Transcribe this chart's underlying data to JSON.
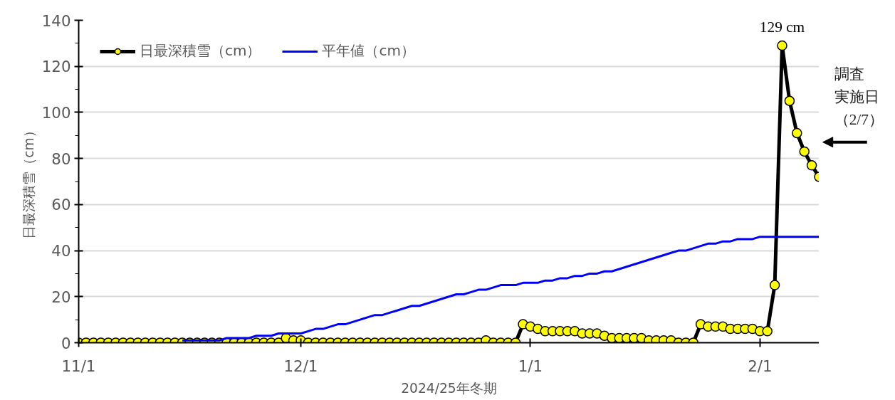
{
  "chart_data": {
    "type": "line",
    "xlabel": "2024/25年冬期",
    "ylabel": "日最深積雪（cm）",
    "xlim": [
      "2024-11-01",
      "2025-02-09"
    ],
    "xticks": [
      {
        "value": "2024-11-01",
        "label": "11/1"
      },
      {
        "value": "2024-12-01",
        "label": "12/1"
      },
      {
        "value": "2025-01-01",
        "label": "1/1"
      },
      {
        "value": "2025-02-01",
        "label": "2/1"
      }
    ],
    "ylim": [
      0,
      140
    ],
    "yticks": [
      0,
      {
        "value": 10,
        "label": null
      },
      20,
      {
        "value": 30,
        "label": null
      },
      40,
      {
        "value": 50,
        "label": null
      },
      60,
      {
        "value": 70,
        "label": null
      },
      80,
      {
        "value": 90,
        "label": null
      },
      100,
      {
        "value": 110,
        "label": null
      },
      120,
      {
        "value": 130,
        "label": null
      },
      140
    ],
    "grid": "y",
    "legend": "top left",
    "marker": "circle",
    "x": [
      "2024-11-01",
      "2024-11-02",
      "2024-11-03",
      "2024-11-04",
      "2024-11-05",
      "2024-11-06",
      "2024-11-07",
      "2024-11-08",
      "2024-11-09",
      "2024-11-10",
      "2024-11-11",
      "2024-11-12",
      "2024-11-13",
      "2024-11-14",
      "2024-11-15",
      "2024-11-16",
      "2024-11-17",
      "2024-11-18",
      "2024-11-19",
      "2024-11-20",
      "2024-11-21",
      "2024-11-22",
      "2024-11-23",
      "2024-11-24",
      "2024-11-25",
      "2024-11-26",
      "2024-11-27",
      "2024-11-28",
      "2024-11-29",
      "2024-11-30",
      "2024-12-01",
      "2024-12-02",
      "2024-12-03",
      "2024-12-04",
      "2024-12-05",
      "2024-12-06",
      "2024-12-07",
      "2024-12-08",
      "2024-12-09",
      "2024-12-10",
      "2024-12-11",
      "2024-12-12",
      "2024-12-13",
      "2024-12-14",
      "2024-12-15",
      "2024-12-16",
      "2024-12-17",
      "2024-12-18",
      "2024-12-19",
      "2024-12-20",
      "2024-12-21",
      "2024-12-22",
      "2024-12-23",
      "2024-12-24",
      "2024-12-25",
      "2024-12-26",
      "2024-12-27",
      "2024-12-28",
      "2024-12-29",
      "2024-12-30",
      "2024-12-31",
      "2025-01-01",
      "2025-01-02",
      "2025-01-03",
      "2025-01-04",
      "2025-01-05",
      "2025-01-06",
      "2025-01-07",
      "2025-01-08",
      "2025-01-09",
      "2025-01-10",
      "2025-01-11",
      "2025-01-12",
      "2025-01-13",
      "2025-01-14",
      "2025-01-15",
      "2025-01-16",
      "2025-01-17",
      "2025-01-18",
      "2025-01-19",
      "2025-01-20",
      "2025-01-21",
      "2025-01-22",
      "2025-01-23",
      "2025-01-24",
      "2025-01-25",
      "2025-01-26",
      "2025-01-27",
      "2025-01-28",
      "2025-01-29",
      "2025-01-30",
      "2025-01-31",
      "2025-02-01",
      "2025-02-02",
      "2025-02-03",
      "2025-02-04",
      "2025-02-05",
      "2025-02-06",
      "2025-02-07",
      "2025-02-08",
      "2025-02-09"
    ],
    "series": [
      {
        "name": "日最深積雪（cm）",
        "color": "#ffff00",
        "values": [
          0,
          0,
          0,
          0,
          0,
          0,
          0,
          0,
          0,
          0,
          0,
          0,
          0,
          0,
          0,
          0,
          0,
          0,
          0,
          0,
          0,
          0,
          0,
          0,
          0,
          0,
          0,
          0,
          2,
          1,
          1,
          0,
          0,
          0,
          0,
          0,
          0,
          0,
          0,
          0,
          0,
          0,
          0,
          0,
          0,
          0,
          0,
          0,
          0,
          0,
          0,
          0,
          0,
          0,
          0,
          1,
          0,
          0,
          0,
          0,
          8,
          7,
          6,
          5,
          5,
          5,
          5,
          5,
          4,
          4,
          4,
          3,
          2,
          2,
          2,
          2,
          2,
          1,
          1,
          1,
          1,
          0,
          0,
          0,
          8,
          7,
          7,
          7,
          6,
          6,
          6,
          6,
          5,
          5,
          25,
          129,
          105,
          91,
          83,
          77,
          72
        ]
      },
      {
        "name": "平年値（cm）",
        "color": "#0000ff",
        "marker": "none",
        "values": [
          null,
          null,
          null,
          null,
          null,
          null,
          null,
          null,
          null,
          null,
          null,
          null,
          null,
          null,
          1,
          1,
          1,
          1,
          1,
          1,
          2,
          2,
          2,
          2,
          3,
          3,
          3,
          4,
          4,
          4,
          4,
          5,
          6,
          6,
          7,
          8,
          8,
          9,
          10,
          11,
          12,
          12,
          13,
          14,
          15,
          16,
          16,
          17,
          18,
          19,
          20,
          21,
          21,
          22,
          23,
          23,
          24,
          25,
          25,
          25,
          26,
          26,
          26,
          27,
          27,
          28,
          28,
          29,
          29,
          30,
          30,
          31,
          31,
          32,
          33,
          34,
          35,
          36,
          37,
          38,
          39,
          40,
          40,
          41,
          42,
          43,
          43,
          44,
          44,
          45,
          45,
          45,
          46,
          46,
          46,
          46,
          46,
          46,
          46,
          46,
          46
        ]
      }
    ],
    "annotations": [
      {
        "text": "129 cm",
        "x": "2025-02-04",
        "y": 129
      },
      {
        "text": "調査実施日（2/7）",
        "x": "2025-02-07",
        "y": 83
      }
    ]
  }
}
